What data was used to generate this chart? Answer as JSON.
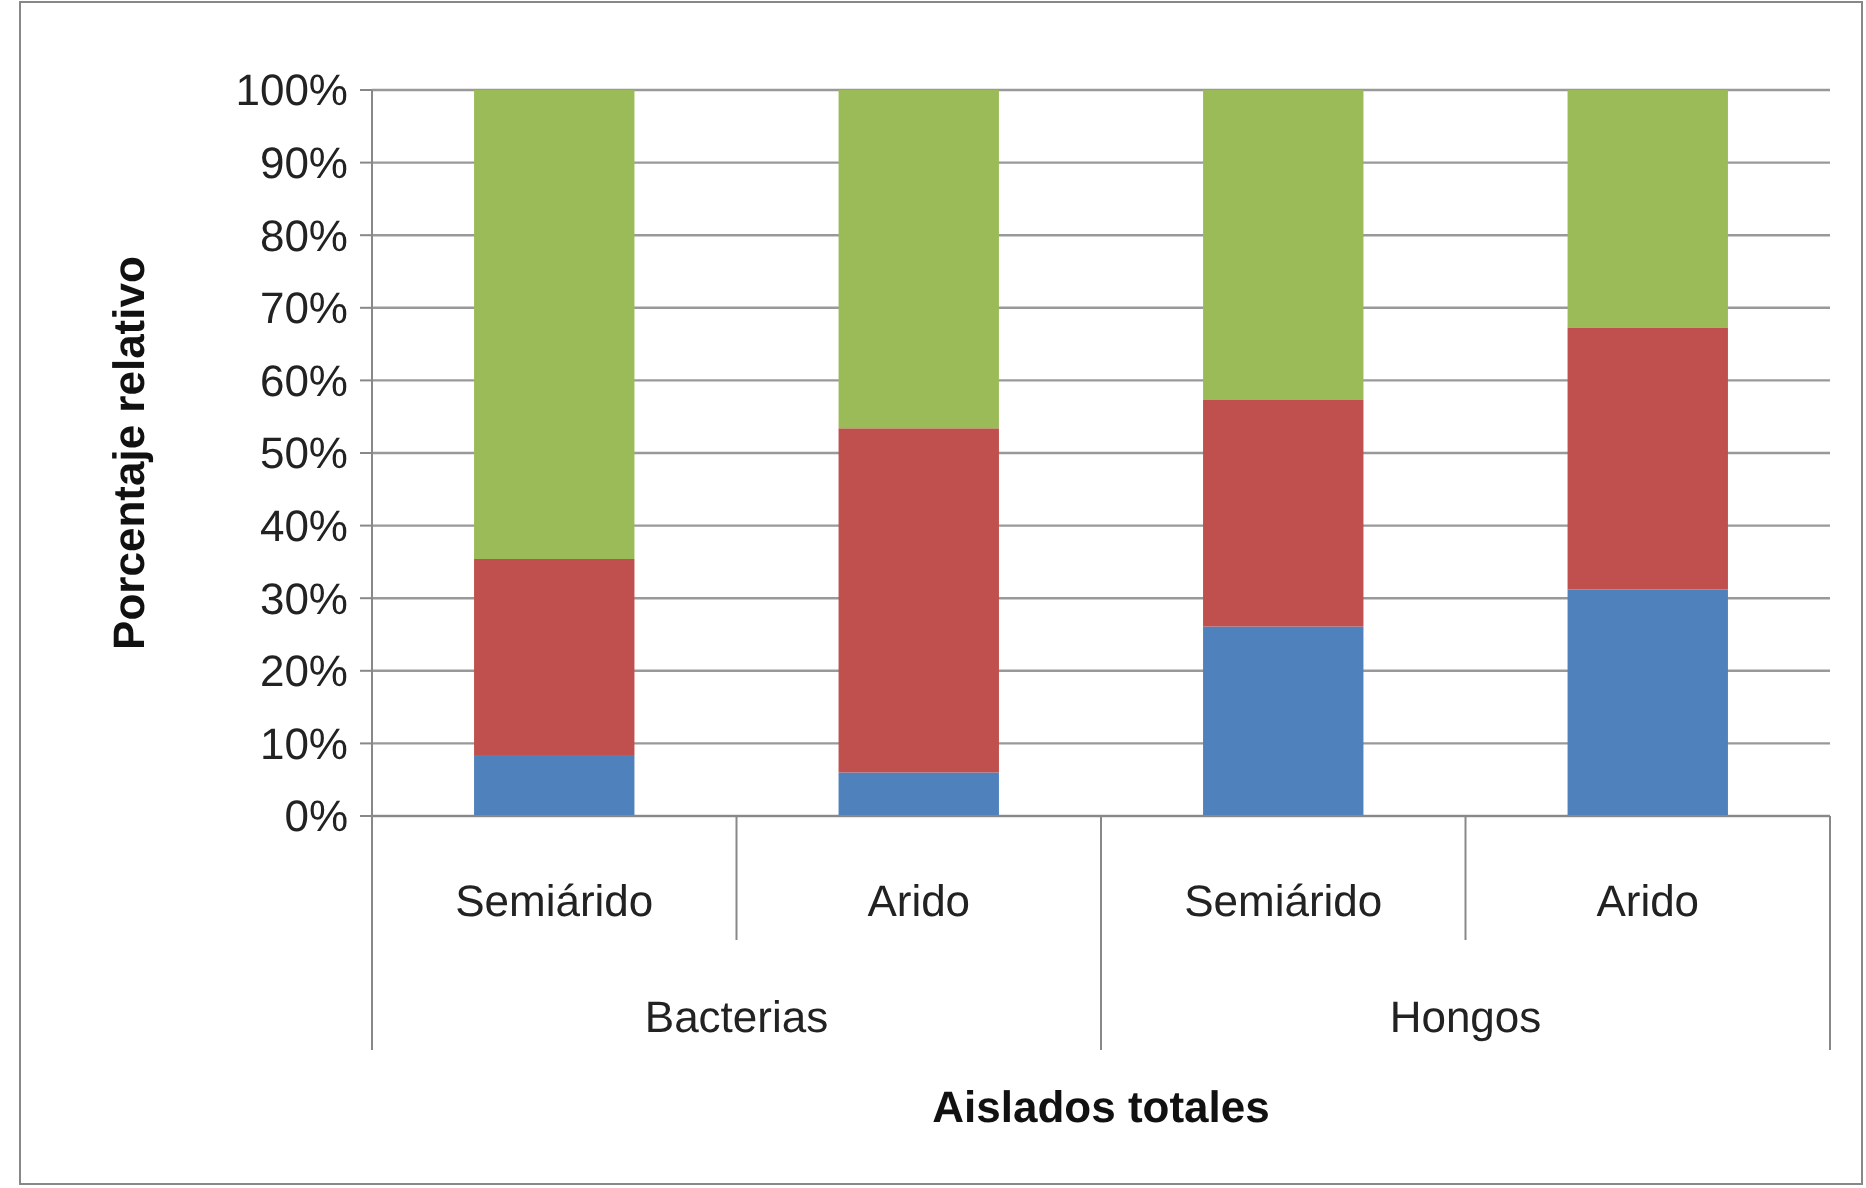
{
  "chart_data": {
    "type": "bar",
    "stacked": true,
    "xlabel": "Aislados totales",
    "ylabel": "Porcentaje relativo",
    "categories": [
      "Semiárido",
      "Arido",
      "Semiárido",
      "Arido"
    ],
    "series": [
      {
        "color": "#4f81bd",
        "values": [
          8.4,
          6.0,
          26.1,
          31.2
        ]
      },
      {
        "color": "#c0504d",
        "values": [
          27.0,
          47.4,
          31.2,
          36.1
        ]
      },
      {
        "color": "#9bbb59",
        "values": [
          64.6,
          46.6,
          42.7,
          32.7
        ]
      }
    ],
    "ylim": [
      0,
      100
    ],
    "yticks": [
      {
        "value": 0,
        "label": "0%"
      },
      {
        "value": 10,
        "label": "10%"
      },
      {
        "value": 20,
        "label": "20%"
      },
      {
        "value": 30,
        "label": "30%"
      },
      {
        "value": 40,
        "label": "40%"
      },
      {
        "value": 50,
        "label": "50%"
      },
      {
        "value": 60,
        "label": "60%"
      },
      {
        "value": 70,
        "label": "70%"
      },
      {
        "value": 80,
        "label": "80%"
      },
      {
        "value": 90,
        "label": "90%"
      },
      {
        "value": 100,
        "label": "100%"
      }
    ],
    "grid": "y",
    "annotations": [
      "Bacterias",
      "Hongos"
    ]
  }
}
